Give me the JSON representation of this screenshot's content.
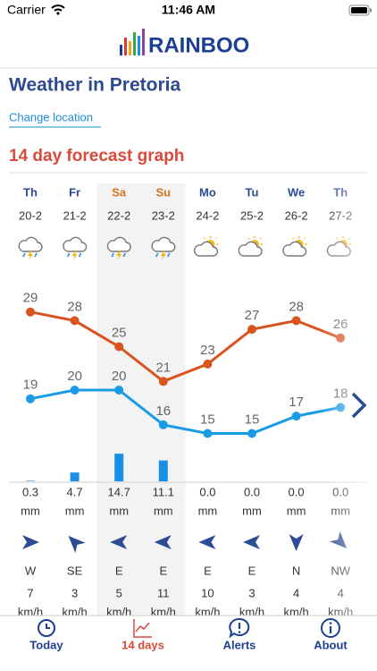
{
  "status_bar": {
    "carrier": "Carrier",
    "time": "11:46 AM"
  },
  "header": {
    "logo": "RAINBOO",
    "title": "Weather in Pretoria",
    "link": "Change location",
    "section": "14 day forecast graph"
  },
  "chart_data": {
    "type": "line",
    "days": [
      "Th",
      "Fr",
      "Sa",
      "Su",
      "Mo",
      "Tu",
      "We",
      "Th"
    ],
    "dates": [
      "20-2",
      "21-2",
      "22-2",
      "23-2",
      "24-2",
      "25-2",
      "26-2",
      "27-2"
    ],
    "weather": [
      "storm",
      "storm",
      "storm",
      "storm",
      "sun-cloud",
      "sun-cloud",
      "sun-cloud",
      "sun-cloud"
    ],
    "highlight_columns": [
      2,
      3
    ],
    "series": [
      {
        "color": "#d9531e",
        "values": [
          29,
          28,
          25,
          21,
          23,
          27,
          28,
          26
        ]
      },
      {
        "color": "#1a9be6",
        "values": [
          19,
          20,
          20,
          16,
          15,
          15,
          17,
          18
        ]
      }
    ],
    "rain": {
      "color": "#1a8fe6",
      "values": [
        0.3,
        4.7,
        14.7,
        11.1,
        0,
        0,
        0,
        0
      ],
      "value_labels": [
        "0.3",
        "4.7",
        "14.7",
        "11.1",
        "0.0",
        "0.0",
        "0.0",
        "0.0"
      ],
      "unit": "mm"
    }
  },
  "wind": {
    "directions": [
      "W",
      "SE",
      "E",
      "E",
      "E",
      "E",
      "N",
      "NW"
    ],
    "speeds": [
      7,
      3,
      5,
      11,
      10,
      3,
      4,
      4
    ],
    "unit": "km/h"
  },
  "tabs": {
    "labels": [
      "Today",
      "14 days",
      "Alerts",
      "About"
    ],
    "active": 1
  }
}
